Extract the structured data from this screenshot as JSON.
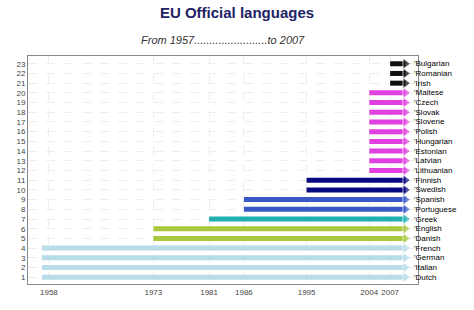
{
  "chart_data": {
    "type": "bar",
    "orientation": "horizontal",
    "title": "EU Official languages",
    "subtitle": "From 1957........................to 2007",
    "categories": [
      "'Dutch",
      "'Italian",
      "'German",
      "'French",
      "'Danish",
      "'English",
      "'Greek",
      "'Portuguese",
      "'Spanish",
      "'Swedish",
      "'Finnish",
      "'Lithuanian",
      "'Latvian",
      "'Estonian",
      "'Hungarian",
      "'Polish",
      "'Slovene",
      "'Slovak",
      "'Czech",
      "'Maltese",
      "'Irish",
      "'Romanian",
      "'Bulgarian"
    ],
    "y": [
      1,
      2,
      3,
      4,
      5,
      6,
      7,
      8,
      9,
      10,
      11,
      12,
      13,
      14,
      15,
      16,
      17,
      18,
      19,
      20,
      21,
      22,
      23
    ],
    "values": [
      1957,
      1957,
      1957,
      1957,
      1973,
      1973,
      1981,
      1986,
      1986,
      1995,
      1995,
      2004,
      2004,
      2004,
      2004,
      2004,
      2004,
      2004,
      2004,
      2004,
      2007,
      2007,
      2007
    ],
    "end": 2009.2,
    "colors": [
      "#b8dce8",
      "#b8dce8",
      "#b8dce8",
      "#b8dce8",
      "#a8c840",
      "#a8c840",
      "#20b0b0",
      "#3858c8",
      "#3858c8",
      "#080880",
      "#080880",
      "#e040e0",
      "#e040e0",
      "#e040e0",
      "#e040e0",
      "#e040e0",
      "#e040e0",
      "#e040e0",
      "#e040e0",
      "#e040e0",
      "#101010",
      "#101010",
      "#101010"
    ],
    "xlim": [
      1955,
      2011
    ],
    "xticks": [
      1958,
      1973,
      1981,
      1986,
      1995,
      2004,
      2007
    ],
    "ylim": [
      0.3,
      23.8
    ],
    "yticks": [
      1,
      2,
      3,
      4,
      5,
      6,
      7,
      8,
      9,
      10,
      11,
      12,
      13,
      14,
      15,
      16,
      17,
      18,
      19,
      20,
      21,
      22,
      23
    ],
    "grid": true
  }
}
